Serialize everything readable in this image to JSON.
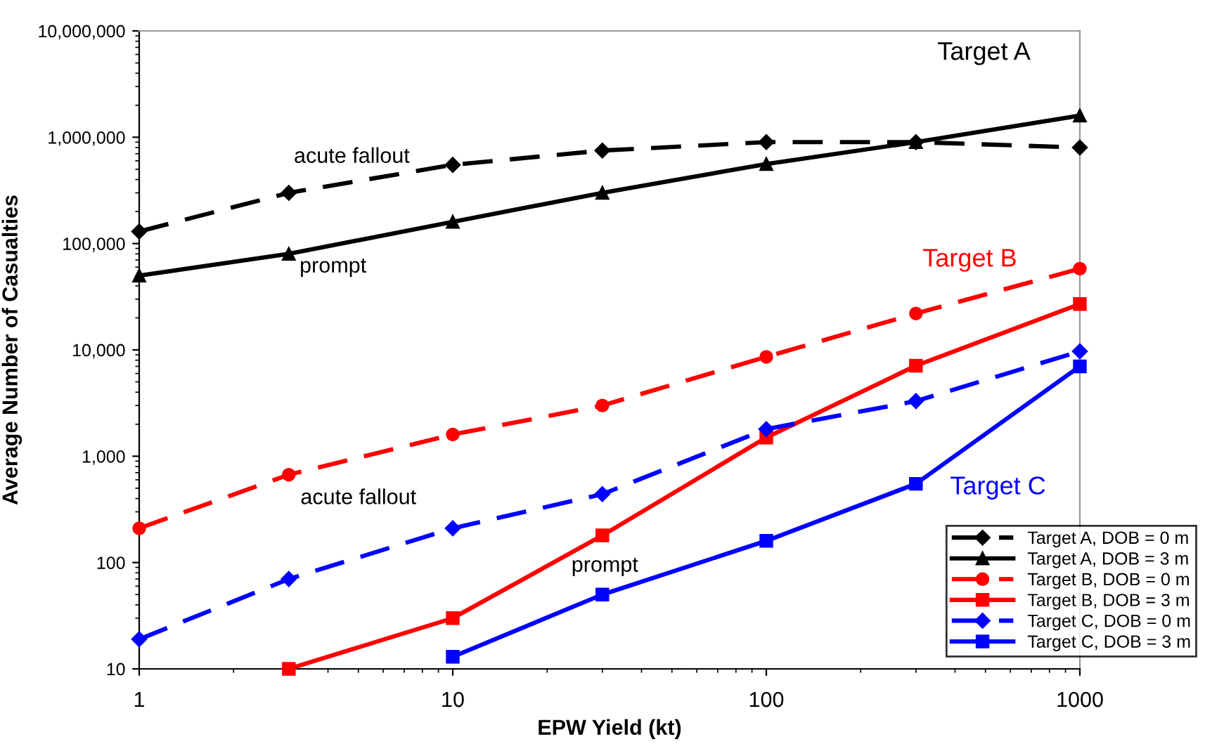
{
  "chart_data": {
    "type": "line",
    "xlabel": "EPW Yield (kt)",
    "ylabel": "Average Number of Casualties",
    "log": "xy",
    "grid": false,
    "legend": "bottom right",
    "xlim": [
      1,
      1000
    ],
    "xticks": [
      1,
      10,
      100,
      1000
    ],
    "ylim": [
      10,
      10000000
    ],
    "yticks": [
      10,
      100,
      {
        "value": 1000,
        "label": "1,000"
      },
      {
        "value": 10000,
        "label": "10,000"
      },
      {
        "value": 100000,
        "label": "100,000"
      },
      {
        "value": 1000000,
        "label": "1,000,000"
      },
      {
        "value": 10000000,
        "label": "10,000,000"
      }
    ],
    "series": [
      {
        "name": "Target A, DOB = 0 m",
        "color": "#000000",
        "marker": "diamond",
        "line_style": "dashed",
        "x": [
          1,
          3,
          10,
          30,
          100,
          300,
          1000
        ],
        "values": [
          130000,
          300000,
          550000,
          750000,
          900000,
          900000,
          800000
        ]
      },
      {
        "name": "Target A, DOB = 3 m",
        "color": "#000000",
        "marker": "triangle",
        "line_style": "solid",
        "x": [
          1,
          3,
          10,
          30,
          100,
          300,
          1000
        ],
        "values": [
          50000,
          80000,
          160000,
          300000,
          560000,
          900000,
          1600000
        ]
      },
      {
        "name": "Target B, DOB = 0 m",
        "color": "#ff0000",
        "marker": "circle",
        "line_style": "dashed",
        "x": [
          1,
          3,
          10,
          30,
          100,
          300,
          1000
        ],
        "values": [
          210,
          670,
          1600,
          3000,
          8600,
          22000,
          58000
        ]
      },
      {
        "name": "Target B, DOB = 3 m",
        "color": "#ff0000",
        "marker": "square",
        "line_style": "solid",
        "x": [
          3,
          10,
          30,
          100,
          300,
          1000
        ],
        "values": [
          10,
          30,
          180,
          1500,
          7100,
          27000
        ]
      },
      {
        "name": "Target C, DOB = 0 m",
        "color": "#0000ff",
        "marker": "diamond",
        "line_style": "dashed",
        "x": [
          1,
          3,
          10,
          30,
          100,
          300,
          1000
        ],
        "values": [
          19,
          70,
          210,
          440,
          1800,
          3300,
          9700
        ]
      },
      {
        "name": "Target C, DOB = 3 m",
        "color": "#0000ff",
        "marker": "square",
        "line_style": "solid",
        "x": [
          10,
          30,
          100,
          300,
          1000
        ],
        "values": [
          13,
          50,
          160,
          550,
          7000
        ]
      }
    ],
    "annotations": [
      "Target A",
      "acute fallout",
      "prompt",
      "Target B",
      "acute fallout",
      "prompt",
      "Target C"
    ]
  }
}
